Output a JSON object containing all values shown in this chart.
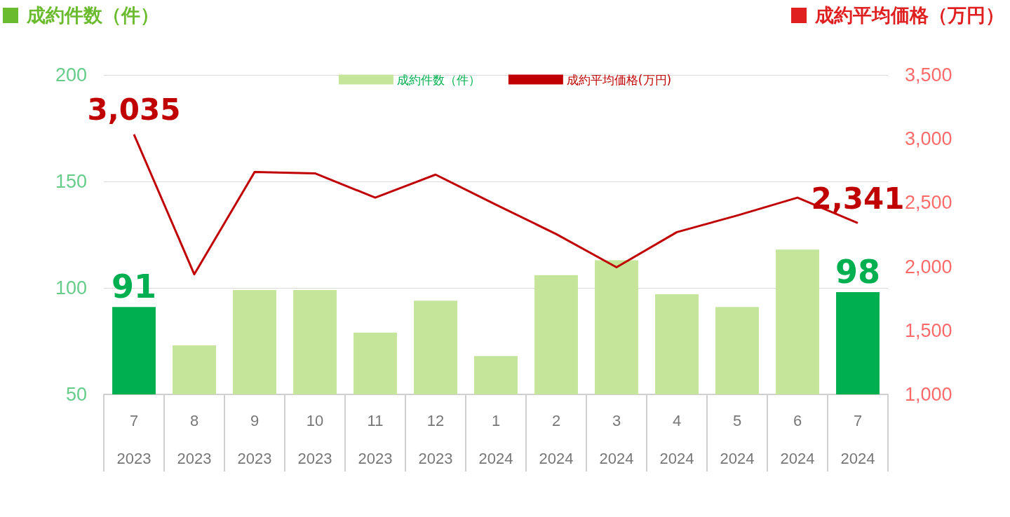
{
  "chart_data": {
    "type": "bar",
    "ylabel": "成約件数（件）",
    "y2label": "成約平均価格（万円）",
    "categories": [
      "7\n2023",
      "8\n2023",
      "9\n2023",
      "10\n2023",
      "11\n2023",
      "12\n2023",
      "1\n2024",
      "2\n2024",
      "3\n2024",
      "4\n2024",
      "5\n2024",
      "6\n2024",
      "7\n2024"
    ],
    "series": [
      {
        "name": "成約件数（件）",
        "color": "#c5e59b",
        "colors": [
          "#00b050",
          "#c5e59b",
          "#c5e59b",
          "#c5e59b",
          "#c5e59b",
          "#c5e59b",
          "#c5e59b",
          "#c5e59b",
          "#c5e59b",
          "#c5e59b",
          "#c5e59b",
          "#c5e59b",
          "#00b050"
        ],
        "values": [
          91,
          73,
          99,
          99,
          79,
          94,
          68,
          106,
          113,
          97,
          91,
          118,
          98
        ],
        "value_labels": [
          "91",
          null,
          null,
          null,
          null,
          null,
          null,
          null,
          null,
          null,
          null,
          null,
          "98"
        ]
      },
      {
        "name": "成約平均価格(万円)",
        "type": "line",
        "axis": "y2",
        "color": "#c00000",
        "values": [
          3035,
          1940,
          2740,
          2730,
          2540,
          2720,
          2485,
          2255,
          1995,
          2270,
          2400,
          2540,
          2341
        ],
        "value_labels": [
          "3,035",
          null,
          null,
          null,
          null,
          null,
          null,
          null,
          null,
          null,
          null,
          null,
          "2,341"
        ]
      }
    ],
    "ylim": [
      50,
      200
    ],
    "yticks": [
      50,
      100,
      150,
      200
    ],
    "y2lim": [
      1000,
      3500
    ],
    "y2ticks": [
      {
        "value": 1000,
        "label": "1,000"
      },
      {
        "value": 1500,
        "label": "1,500"
      },
      {
        "value": 2000,
        "label": "2,000"
      },
      {
        "value": 2500,
        "label": "2,500"
      },
      {
        "value": 3000,
        "label": "3,000"
      },
      {
        "value": 3500,
        "label": "3,500"
      }
    ],
    "grid": "y",
    "legend": "top",
    "marker": "none",
    "line_style": "solid"
  }
}
